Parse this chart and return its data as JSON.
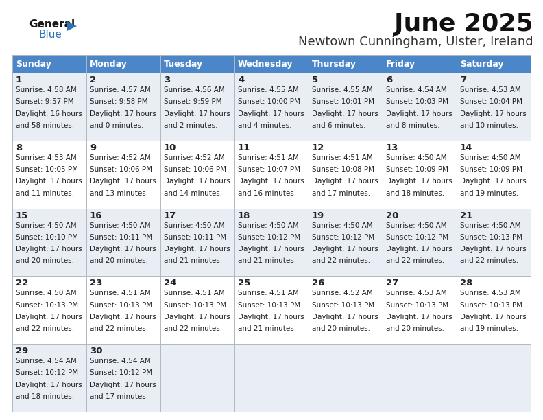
{
  "title": "June 2025",
  "subtitle": "Newtown Cunningham, Ulster, Ireland",
  "days_of_week": [
    "Sunday",
    "Monday",
    "Tuesday",
    "Wednesday",
    "Thursday",
    "Friday",
    "Saturday"
  ],
  "header_bg": "#4a86c8",
  "header_text": "#ffffff",
  "row_bg_light": "#e8eef4",
  "row_bg_white": "#ffffff",
  "cell_text_color": "#222222",
  "days": [
    {
      "day": 1,
      "col": 0,
      "row": 0,
      "sunrise": "4:58 AM",
      "sunset": "9:57 PM",
      "dl1": "Daylight: 16 hours",
      "dl2": "and 58 minutes."
    },
    {
      "day": 2,
      "col": 1,
      "row": 0,
      "sunrise": "4:57 AM",
      "sunset": "9:58 PM",
      "dl1": "Daylight: 17 hours",
      "dl2": "and 0 minutes."
    },
    {
      "day": 3,
      "col": 2,
      "row": 0,
      "sunrise": "4:56 AM",
      "sunset": "9:59 PM",
      "dl1": "Daylight: 17 hours",
      "dl2": "and 2 minutes."
    },
    {
      "day": 4,
      "col": 3,
      "row": 0,
      "sunrise": "4:55 AM",
      "sunset": "10:00 PM",
      "dl1": "Daylight: 17 hours",
      "dl2": "and 4 minutes."
    },
    {
      "day": 5,
      "col": 4,
      "row": 0,
      "sunrise": "4:55 AM",
      "sunset": "10:01 PM",
      "dl1": "Daylight: 17 hours",
      "dl2": "and 6 minutes."
    },
    {
      "day": 6,
      "col": 5,
      "row": 0,
      "sunrise": "4:54 AM",
      "sunset": "10:03 PM",
      "dl1": "Daylight: 17 hours",
      "dl2": "and 8 minutes."
    },
    {
      "day": 7,
      "col": 6,
      "row": 0,
      "sunrise": "4:53 AM",
      "sunset": "10:04 PM",
      "dl1": "Daylight: 17 hours",
      "dl2": "and 10 minutes."
    },
    {
      "day": 8,
      "col": 0,
      "row": 1,
      "sunrise": "4:53 AM",
      "sunset": "10:05 PM",
      "dl1": "Daylight: 17 hours",
      "dl2": "and 11 minutes."
    },
    {
      "day": 9,
      "col": 1,
      "row": 1,
      "sunrise": "4:52 AM",
      "sunset": "10:06 PM",
      "dl1": "Daylight: 17 hours",
      "dl2": "and 13 minutes."
    },
    {
      "day": 10,
      "col": 2,
      "row": 1,
      "sunrise": "4:52 AM",
      "sunset": "10:06 PM",
      "dl1": "Daylight: 17 hours",
      "dl2": "and 14 minutes."
    },
    {
      "day": 11,
      "col": 3,
      "row": 1,
      "sunrise": "4:51 AM",
      "sunset": "10:07 PM",
      "dl1": "Daylight: 17 hours",
      "dl2": "and 16 minutes."
    },
    {
      "day": 12,
      "col": 4,
      "row": 1,
      "sunrise": "4:51 AM",
      "sunset": "10:08 PM",
      "dl1": "Daylight: 17 hours",
      "dl2": "and 17 minutes."
    },
    {
      "day": 13,
      "col": 5,
      "row": 1,
      "sunrise": "4:50 AM",
      "sunset": "10:09 PM",
      "dl1": "Daylight: 17 hours",
      "dl2": "and 18 minutes."
    },
    {
      "day": 14,
      "col": 6,
      "row": 1,
      "sunrise": "4:50 AM",
      "sunset": "10:09 PM",
      "dl1": "Daylight: 17 hours",
      "dl2": "and 19 minutes."
    },
    {
      "day": 15,
      "col": 0,
      "row": 2,
      "sunrise": "4:50 AM",
      "sunset": "10:10 PM",
      "dl1": "Daylight: 17 hours",
      "dl2": "and 20 minutes."
    },
    {
      "day": 16,
      "col": 1,
      "row": 2,
      "sunrise": "4:50 AM",
      "sunset": "10:11 PM",
      "dl1": "Daylight: 17 hours",
      "dl2": "and 20 minutes."
    },
    {
      "day": 17,
      "col": 2,
      "row": 2,
      "sunrise": "4:50 AM",
      "sunset": "10:11 PM",
      "dl1": "Daylight: 17 hours",
      "dl2": "and 21 minutes."
    },
    {
      "day": 18,
      "col": 3,
      "row": 2,
      "sunrise": "4:50 AM",
      "sunset": "10:12 PM",
      "dl1": "Daylight: 17 hours",
      "dl2": "and 21 minutes."
    },
    {
      "day": 19,
      "col": 4,
      "row": 2,
      "sunrise": "4:50 AM",
      "sunset": "10:12 PM",
      "dl1": "Daylight: 17 hours",
      "dl2": "and 22 minutes."
    },
    {
      "day": 20,
      "col": 5,
      "row": 2,
      "sunrise": "4:50 AM",
      "sunset": "10:12 PM",
      "dl1": "Daylight: 17 hours",
      "dl2": "and 22 minutes."
    },
    {
      "day": 21,
      "col": 6,
      "row": 2,
      "sunrise": "4:50 AM",
      "sunset": "10:13 PM",
      "dl1": "Daylight: 17 hours",
      "dl2": "and 22 minutes."
    },
    {
      "day": 22,
      "col": 0,
      "row": 3,
      "sunrise": "4:50 AM",
      "sunset": "10:13 PM",
      "dl1": "Daylight: 17 hours",
      "dl2": "and 22 minutes."
    },
    {
      "day": 23,
      "col": 1,
      "row": 3,
      "sunrise": "4:51 AM",
      "sunset": "10:13 PM",
      "dl1": "Daylight: 17 hours",
      "dl2": "and 22 minutes."
    },
    {
      "day": 24,
      "col": 2,
      "row": 3,
      "sunrise": "4:51 AM",
      "sunset": "10:13 PM",
      "dl1": "Daylight: 17 hours",
      "dl2": "and 22 minutes."
    },
    {
      "day": 25,
      "col": 3,
      "row": 3,
      "sunrise": "4:51 AM",
      "sunset": "10:13 PM",
      "dl1": "Daylight: 17 hours",
      "dl2": "and 21 minutes."
    },
    {
      "day": 26,
      "col": 4,
      "row": 3,
      "sunrise": "4:52 AM",
      "sunset": "10:13 PM",
      "dl1": "Daylight: 17 hours",
      "dl2": "and 20 minutes."
    },
    {
      "day": 27,
      "col": 5,
      "row": 3,
      "sunrise": "4:53 AM",
      "sunset": "10:13 PM",
      "dl1": "Daylight: 17 hours",
      "dl2": "and 20 minutes."
    },
    {
      "day": 28,
      "col": 6,
      "row": 3,
      "sunrise": "4:53 AM",
      "sunset": "10:13 PM",
      "dl1": "Daylight: 17 hours",
      "dl2": "and 19 minutes."
    },
    {
      "day": 29,
      "col": 0,
      "row": 4,
      "sunrise": "4:54 AM",
      "sunset": "10:12 PM",
      "dl1": "Daylight: 17 hours",
      "dl2": "and 18 minutes."
    },
    {
      "day": 30,
      "col": 1,
      "row": 4,
      "sunrise": "4:54 AM",
      "sunset": "10:12 PM",
      "dl1": "Daylight: 17 hours",
      "dl2": "and 17 minutes."
    }
  ]
}
